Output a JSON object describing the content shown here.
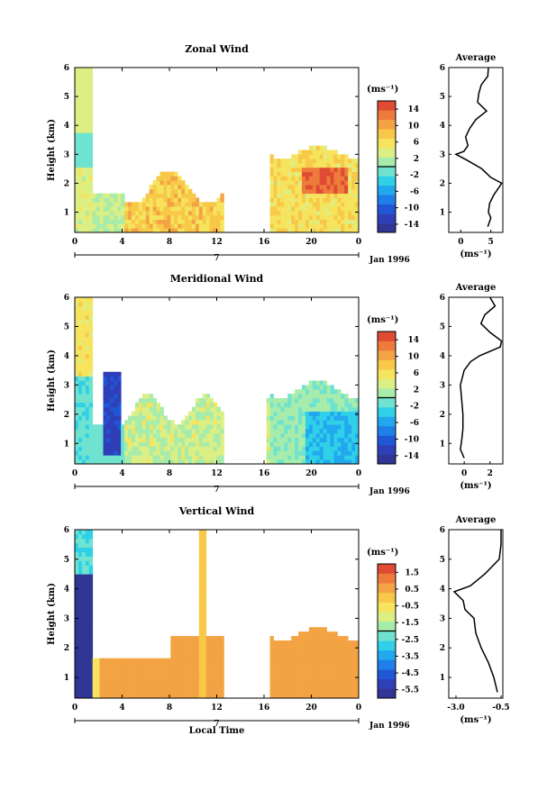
{
  "panels": [
    {
      "title": "Zonal Wind",
      "ylabel": "Height (km)",
      "yticks": [
        "1",
        "2",
        "3",
        "4",
        "5",
        "6"
      ],
      "xticks": [
        "0",
        "4",
        "8",
        "12",
        "16",
        "20",
        "0"
      ],
      "date_mark": "7",
      "date_label": "Jan 1996",
      "cbar_unit": "(ms⁻¹)",
      "cbar_ticks": [
        "14",
        "10",
        "6",
        "2",
        "-2",
        "-6",
        "-10",
        "-14"
      ],
      "avg_title": "Average",
      "avg_xticks": [
        "0",
        "5"
      ],
      "avg_unit": "(ms⁻¹)"
    },
    {
      "title": "Meridional Wind",
      "ylabel": "Height (km)",
      "yticks": [
        "1",
        "2",
        "3",
        "4",
        "5",
        "6"
      ],
      "xticks": [
        "0",
        "4",
        "8",
        "12",
        "16",
        "20",
        "0"
      ],
      "date_mark": "7",
      "date_label": "Jan 1996",
      "cbar_unit": "(ms⁻¹)",
      "cbar_ticks": [
        "14",
        "10",
        "6",
        "2",
        "-2",
        "-6",
        "-10",
        "-14"
      ],
      "avg_title": "Average",
      "avg_xticks": [
        "0",
        "2"
      ],
      "avg_unit": "(ms⁻¹)"
    },
    {
      "title": "Vertical Wind",
      "ylabel": "Height (km)",
      "yticks": [
        "1",
        "2",
        "3",
        "4",
        "5",
        "6"
      ],
      "xticks": [
        "0",
        "4",
        "8",
        "12",
        "16",
        "20",
        "0"
      ],
      "date_mark": "7",
      "date_label": "Jan 1996",
      "cbar_unit": "(ms⁻¹)",
      "cbar_ticks": [
        "1.5",
        "0.5",
        "-0.5",
        "-1.5",
        "-2.5",
        "-3.5",
        "-4.5",
        "-5.5"
      ],
      "avg_title": "Average",
      "avg_xticks": [
        "-3.0",
        "-0.5"
      ],
      "avg_unit": "(ms⁻¹)",
      "xlabel": "Local Time"
    }
  ],
  "colormap": [
    "#313695",
    "#2f3fb8",
    "#1f57d6",
    "#1f7fe8",
    "#22a8ee",
    "#2fd0e8",
    "#6fe3cf",
    "#a7ecaa",
    "#dcef84",
    "#f6e35e",
    "#f8c848",
    "#f3a343",
    "#ee7b3b",
    "#e04b33"
  ],
  "chart_data": [
    {
      "type": "heatmap",
      "title": "Zonal Wind",
      "xlabel": "",
      "ylabel": "Height (km)",
      "xlim": [
        0,
        24
      ],
      "ylim": [
        0.3,
        6
      ],
      "clim": [
        -16,
        16
      ],
      "profile": {
        "xlim": [
          -2,
          7
        ],
        "heights": [
          0.5,
          0.8,
          1.0,
          1.3,
          1.6,
          1.9,
          2.0,
          2.2,
          2.5,
          2.8,
          3.0,
          3.1,
          3.3,
          3.6,
          3.9,
          4.2,
          4.5,
          4.8,
          5.1,
          5.4,
          5.7,
          6.0
        ],
        "values": [
          4.5,
          5.0,
          4.6,
          4.8,
          5.5,
          6.5,
          6.8,
          5.0,
          3.5,
          1.0,
          -0.8,
          0.5,
          1.2,
          0.8,
          1.5,
          2.5,
          4.3,
          2.8,
          3.0,
          3.4,
          4.5,
          4.6
        ]
      }
    },
    {
      "type": "heatmap",
      "title": "Meridional Wind",
      "xlabel": "",
      "ylabel": "Height (km)",
      "xlim": [
        0,
        24
      ],
      "ylim": [
        0.3,
        6
      ],
      "clim": [
        -16,
        16
      ],
      "profile": {
        "xlim": [
          -1.2,
          3
        ],
        "heights": [
          0.5,
          0.8,
          1.1,
          1.5,
          2.0,
          2.5,
          3.0,
          3.5,
          3.8,
          4.0,
          4.3,
          4.5,
          4.8,
          5.1,
          5.4,
          5.7,
          6.0
        ],
        "values": [
          0.0,
          -0.3,
          -0.2,
          -0.1,
          -0.1,
          -0.2,
          -0.3,
          0.0,
          0.5,
          1.2,
          2.8,
          2.9,
          2.0,
          1.3,
          1.6,
          2.4,
          2.0
        ]
      }
    },
    {
      "type": "heatmap",
      "title": "Vertical Wind",
      "xlabel": "Local Time",
      "ylabel": "Height (km)",
      "xlim": [
        0,
        24
      ],
      "ylim": [
        0.3,
        6
      ],
      "clim": [
        -6,
        2
      ],
      "profile": {
        "xlim": [
          -3.4,
          -0.4
        ],
        "heights": [
          0.5,
          1.0,
          1.5,
          2.0,
          2.5,
          3.0,
          3.3,
          3.6,
          3.9,
          4.1,
          4.5,
          5.0,
          5.5,
          6.0
        ],
        "values": [
          -0.7,
          -0.9,
          -1.2,
          -1.6,
          -1.9,
          -2.0,
          -2.5,
          -2.6,
          -3.1,
          -2.2,
          -1.4,
          -0.6,
          -0.5,
          -0.5
        ]
      }
    }
  ]
}
